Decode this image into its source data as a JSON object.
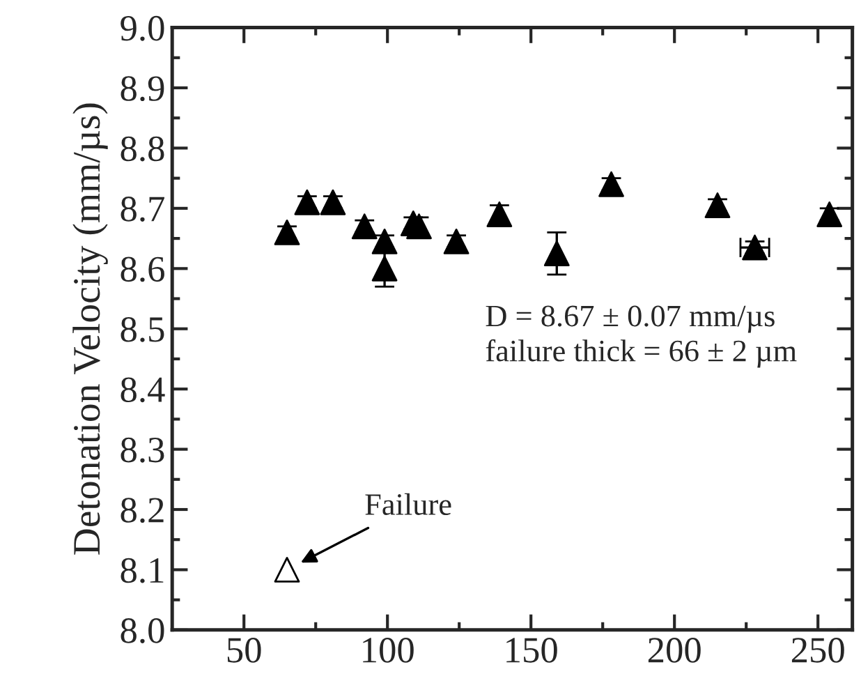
{
  "chart_data": {
    "type": "scatter",
    "ylabel": "Detonation Velocity (mm/µs)",
    "xlim": [
      25,
      262
    ],
    "ylim": [
      8.0,
      9.0
    ],
    "xticks": [
      50,
      {
        "value": 75,
        "label": null
      },
      100,
      {
        "value": 125,
        "label": null
      },
      150,
      {
        "value": 175,
        "label": null
      },
      200,
      {
        "value": 225,
        "label": null
      },
      250
    ],
    "yticks": [
      "8.0",
      {
        "value": 8.05,
        "label": null
      },
      {
        "value": 8.1,
        "label": "8.1"
      },
      {
        "value": 8.15,
        "label": null
      },
      {
        "value": 8.2,
        "label": "8.2"
      },
      {
        "value": 8.25,
        "label": null
      },
      {
        "value": 8.3,
        "label": "8.3"
      },
      {
        "value": 8.35,
        "label": null
      },
      {
        "value": 8.4,
        "label": "8.4"
      },
      {
        "value": 8.45,
        "label": null
      },
      {
        "value": 8.5,
        "label": "8.5"
      },
      {
        "value": 8.55,
        "label": null
      },
      {
        "value": 8.6,
        "label": "8.6"
      },
      {
        "value": 8.65,
        "label": null
      },
      {
        "value": 8.7,
        "label": "8.7"
      },
      {
        "value": 8.75,
        "label": null
      },
      {
        "value": 8.8,
        "label": "8.8"
      },
      {
        "value": 8.85,
        "label": null
      },
      {
        "value": 8.9,
        "label": "8.9"
      },
      {
        "value": 8.95,
        "label": null
      },
      {
        "value": 9.0,
        "label": "9.0"
      }
    ],
    "grid": false,
    "legend": false,
    "series": [
      {
        "color": "#000000",
        "marker": "triangle",
        "x": [
          65,
          72,
          81,
          92,
          99,
          99,
          109,
          111,
          124,
          139,
          159,
          178,
          215,
          228,
          254
        ],
        "values": [
          8.66,
          8.71,
          8.71,
          8.67,
          8.645,
          8.6,
          8.675,
          8.67,
          8.645,
          8.69,
          8.625,
          8.74,
          8.705,
          8.635,
          8.69
        ],
        "errors": [
          0.01,
          0.01,
          0.01,
          0.01,
          0.01,
          0.03,
          0.01,
          0.015,
          0.01,
          0.015,
          0.035,
          0.01,
          0.01,
          0.01,
          0.01
        ],
        "xerrors": [
          null,
          null,
          null,
          null,
          null,
          null,
          null,
          null,
          null,
          null,
          null,
          null,
          null,
          5,
          null
        ]
      },
      {
        "color": "#000000",
        "marker": "triangle-open",
        "x": [
          65
        ],
        "values": [
          8.1
        ]
      }
    ],
    "annotations": [
      "D = 8.67 ± 0.07 mm/µs",
      "failure thick = 66 ± 2 µm",
      "Failure"
    ]
  }
}
